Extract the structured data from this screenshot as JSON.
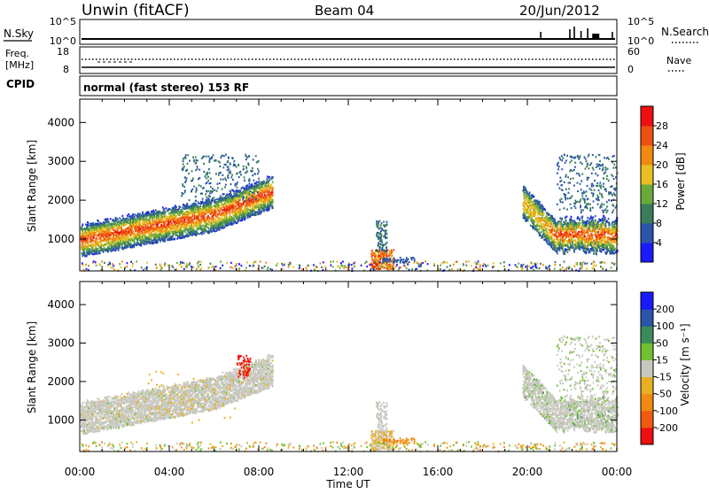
{
  "header": {
    "station": "Unwin (fitACF)",
    "beam": "Beam 04",
    "date": "20/Jun/2012"
  },
  "nsky_panel": {
    "left_label": "N.Sky",
    "right_label": "N.Search",
    "left_ticks": [
      "10^5",
      "10^0"
    ],
    "right_ticks": [
      "10^5",
      "10^0"
    ]
  },
  "freq_panel": {
    "left_label_1": "Freq.",
    "left_label_2": "[MHz]",
    "right_label": "Nave",
    "left_ticks": [
      "18",
      "8"
    ],
    "right_ticks": [
      "60",
      "0"
    ]
  },
  "cpid": {
    "label": "CPID",
    "text": "normal (fast stereo) 153 RF"
  },
  "power_panel": {
    "ylabel": "Slant Range [km]",
    "yticks": [
      "1000",
      "2000",
      "3000",
      "4000"
    ],
    "colorbar_label": "Power [dB]",
    "colorbar_ticks": [
      "4",
      "8",
      "12",
      "16",
      "20",
      "24",
      "28"
    ],
    "colors": [
      "#1a1aff",
      "#2a55a8",
      "#3a7d5a",
      "#6aaa3a",
      "#e8c020",
      "#f08a10",
      "#ee5010",
      "#ee1010"
    ]
  },
  "velocity_panel": {
    "ylabel": "Slant Range [km]",
    "yticks": [
      "1000",
      "2000",
      "3000",
      "4000"
    ],
    "colorbar_label": "Velocity [m s⁻¹]",
    "colorbar_ticks": [
      "-200",
      "-100",
      "-50",
      "-15",
      "15",
      "50",
      "100",
      "200"
    ],
    "colors": [
      "#ee1010",
      "#f05a10",
      "#f08a10",
      "#e8b020",
      "#c8c8c0",
      "#70c030",
      "#3a8a5a",
      "#2a55a8",
      "#1a1aff"
    ]
  },
  "x_axis": {
    "ticks": [
      "00:00",
      "04:00",
      "08:00",
      "12:00",
      "16:00",
      "20:00",
      "00:00"
    ],
    "label": "Time UT"
  },
  "chart_data": [
    {
      "type": "heatmap",
      "title": "Power",
      "xlabel": "Time UT",
      "ylabel": "Slant Range [km]",
      "xlim_hours": [
        0,
        24
      ],
      "ylim_km": [
        180,
        4600
      ],
      "color_scale": "Power [dB]",
      "color_range": [
        0,
        32
      ],
      "regions": [
        {
          "t": [
            0.0,
            8.6
          ],
          "range_km": [
            500,
            2400
          ],
          "peak_power_db": 26
        },
        {
          "t": [
            4.5,
            8.0
          ],
          "range_km": [
            2000,
            3200
          ],
          "peak_power_db": 10
        },
        {
          "t": [
            12.9,
            14.1
          ],
          "range_km": [
            250,
            1500
          ],
          "peak_power_db": 28
        },
        {
          "t": [
            19.8,
            24.0
          ],
          "range_km": [
            800,
            3200
          ],
          "peak_power_db": 28
        }
      ]
    },
    {
      "type": "heatmap",
      "title": "Velocity",
      "xlabel": "Time UT",
      "ylabel": "Slant Range [km]",
      "xlim_hours": [
        0,
        24
      ],
      "ylim_km": [
        180,
        4600
      ],
      "color_scale": "Velocity [m s⁻¹]",
      "color_range": [
        -250,
        250
      ],
      "regions": [
        {
          "t": [
            0.0,
            8.6
          ],
          "range_km": [
            600,
            2500
          ],
          "velocity_ms": 0
        },
        {
          "t": [
            7.0,
            7.6
          ],
          "range_km": [
            2100,
            2700
          ],
          "velocity_ms": -200
        },
        {
          "t": [
            13.0,
            14.0
          ],
          "range_km": [
            250,
            1500
          ],
          "velocity_ms": -30
        },
        {
          "t": [
            19.8,
            24.0
          ],
          "range_km": [
            800,
            3000
          ],
          "velocity_ms": 10
        }
      ]
    }
  ]
}
